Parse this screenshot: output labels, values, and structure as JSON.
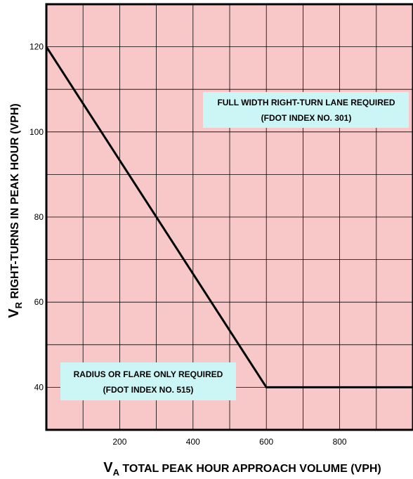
{
  "colors": {
    "plot_background": "#f8c8c8",
    "grid": "#000000",
    "frame": "#000000",
    "line": "#000000",
    "annotation_box": "#ccf5f5"
  },
  "chart_data": {
    "type": "line",
    "xlim": [
      0,
      1000
    ],
    "ylim": [
      30,
      130
    ],
    "x_ticks": [
      "200",
      "400",
      "600",
      "800"
    ],
    "y_ticks": [
      "120",
      "100",
      "80",
      "60",
      "40"
    ],
    "grid": true,
    "xlabel": {
      "main": "V",
      "subscript": "A",
      "rest": " TOTAL PEAK HOUR APPROACH VOLUME (VPH)"
    },
    "ylabel": {
      "main": "V",
      "subscript": "R",
      "rest": " RIGHT-TURNS IN PEAK HOUR (VPH)"
    },
    "series": [
      {
        "x": [
          0,
          600,
          1000
        ],
        "y": [
          120,
          40,
          40
        ]
      }
    ],
    "annotations": [
      {
        "lines": [
          "FULL WIDTH RIGHT-TURN LANE REQUIRED",
          "(FDOT INDEX NO. 301)"
        ]
      },
      {
        "lines": [
          "RADIUS OR FLARE ONLY REQUIRED",
          "(FDOT INDEX NO. 515)"
        ]
      }
    ]
  }
}
